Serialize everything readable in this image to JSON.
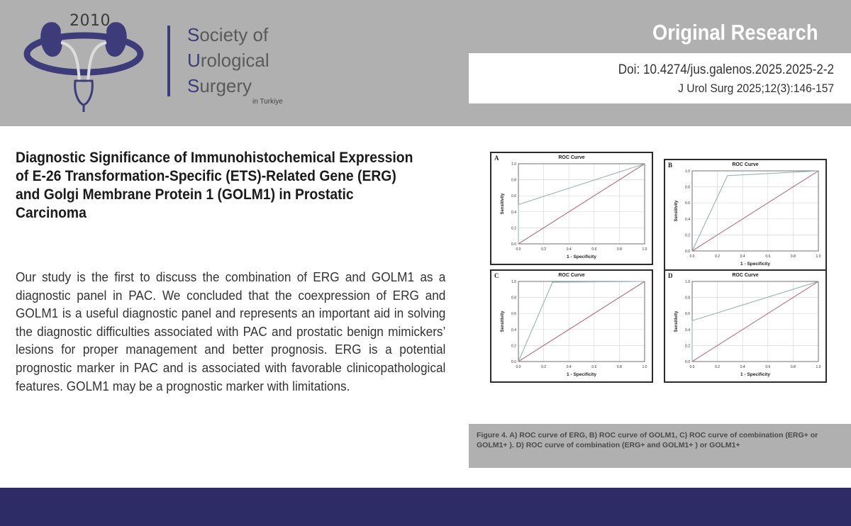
{
  "header": {
    "logo": {
      "year": "2010",
      "line1_initial": "S",
      "line1_rest": "ociety of",
      "line2_initial": "U",
      "line2_rest": "rological",
      "line3_initial": "S",
      "line3_rest": "urgery",
      "subtitle": "in Turkiye",
      "colors": {
        "kidney": "#3d3b7a",
        "accent": "#3d3b7a",
        "text": "#5a5a5a"
      }
    },
    "badge": "Original Research",
    "doi": "Doi: 10.4274/jus.galenos.2025.2025-2-2",
    "citation": "J Urol Surg 2025;12(3):146-157"
  },
  "article": {
    "title": "Diagnostic Significance of Immunohistochemical Expression of E-26 Transformation-Specific (ETS)-Related Gene (ERG) and Golgi Membrane Protein 1 (GOLM1) in Prostatic Carcinoma",
    "abstract": "Our study is the first to discuss the combination of ERG and GOLM1 as a diagnostic panel in PAC. We concluded that the coexpression of ERG and GOLM1 is a useful diagnostic panel and represents an important aid in solving the diagnostic difficulties associated with PAC and prostatic benign mimickers’ lesions for proper management and better prognosis. ERG is a potential prognostic marker in PAC and is associated with favorable clinicopathological features. GOLM1 may be a prognostic marker with limitations."
  },
  "figure": {
    "caption": "Figure 4. A) ROC curve of ERG, B) ROC curve of GOLM1, C) ROC curve of combination (ERG+ or GOLM1+ ). D) ROC curve of combination (ERG+ and GOLM1+ ) or GOLM1+"
  },
  "chart_data": [
    {
      "type": "line",
      "panel": "A",
      "title": "ROC Curve",
      "xlabel": "1 - Specificity",
      "ylabel": "Sensitivity",
      "xlim": [
        0,
        1
      ],
      "ylim": [
        0,
        1
      ],
      "x_ticks": [
        "0.0",
        "0.2",
        "0.4",
        "0.6",
        "0.8",
        "1.0"
      ],
      "y_ticks": [
        "0.0",
        "0.2",
        "0.4",
        "0.6",
        "0.8",
        "1.0"
      ],
      "grid": true,
      "series": [
        {
          "points": [
            [
              0,
              0
            ],
            [
              0,
              0.49
            ],
            [
              1,
              1
            ]
          ],
          "color": "#9ab4b4"
        },
        {
          "points": [
            [
              0,
              0
            ],
            [
              1,
              1
            ]
          ],
          "color": "#b07088"
        }
      ]
    },
    {
      "type": "line",
      "panel": "B",
      "title": "ROC Curve",
      "xlabel": "1 - Specificity",
      "ylabel": "Sensitivity",
      "xlim": [
        0,
        1
      ],
      "ylim": [
        0,
        1
      ],
      "x_ticks": [
        "0.0",
        "0.2",
        "0.4",
        "0.6",
        "0.8",
        "1.0"
      ],
      "y_ticks": [
        "0.0",
        "0.2",
        "0.4",
        "0.6",
        "0.8",
        "1.0"
      ],
      "grid": true,
      "series": [
        {
          "points": [
            [
              0,
              0
            ],
            [
              0.28,
              0.94
            ],
            [
              1,
              1
            ]
          ],
          "color": "#9ab4b4"
        },
        {
          "points": [
            [
              0,
              0
            ],
            [
              1,
              1
            ]
          ],
          "color": "#b07088"
        }
      ]
    },
    {
      "type": "line",
      "panel": "C",
      "title": "ROC Curve",
      "xlabel": "1 - Specificity",
      "ylabel": "Sensitivity",
      "xlim": [
        0,
        1
      ],
      "ylim": [
        0,
        1
      ],
      "x_ticks": [
        "0.0",
        "0.2",
        "0.4",
        "0.6",
        "0.8",
        "1.0"
      ],
      "y_ticks": [
        "0.0",
        "0.2",
        "0.4",
        "0.6",
        "0.8",
        "1.0"
      ],
      "grid": true,
      "series": [
        {
          "points": [
            [
              0,
              0
            ],
            [
              0.27,
              0.99
            ],
            [
              1,
              1
            ]
          ],
          "color": "#9ab4b4"
        },
        {
          "points": [
            [
              0,
              0
            ],
            [
              1,
              1
            ]
          ],
          "color": "#b07088"
        }
      ]
    },
    {
      "type": "line",
      "panel": "D",
      "title": "ROC Curve",
      "xlabel": "1 - Specificity",
      "ylabel": "Sensitivity",
      "xlim": [
        0,
        1
      ],
      "ylim": [
        0,
        1
      ],
      "x_ticks": [
        "0.0",
        "0.2",
        "0.4",
        "0.6",
        "0.8",
        "1.0"
      ],
      "y_ticks": [
        "0.0",
        "0.2",
        "0.4",
        "0.6",
        "0.8",
        "1.0"
      ],
      "grid": true,
      "series": [
        {
          "points": [
            [
              0,
              0
            ],
            [
              0,
              0.51
            ],
            [
              1,
              1
            ]
          ],
          "color": "#9ab4b4"
        },
        {
          "points": [
            [
              0,
              0
            ],
            [
              1,
              1
            ]
          ],
          "color": "#b07088"
        }
      ]
    }
  ]
}
